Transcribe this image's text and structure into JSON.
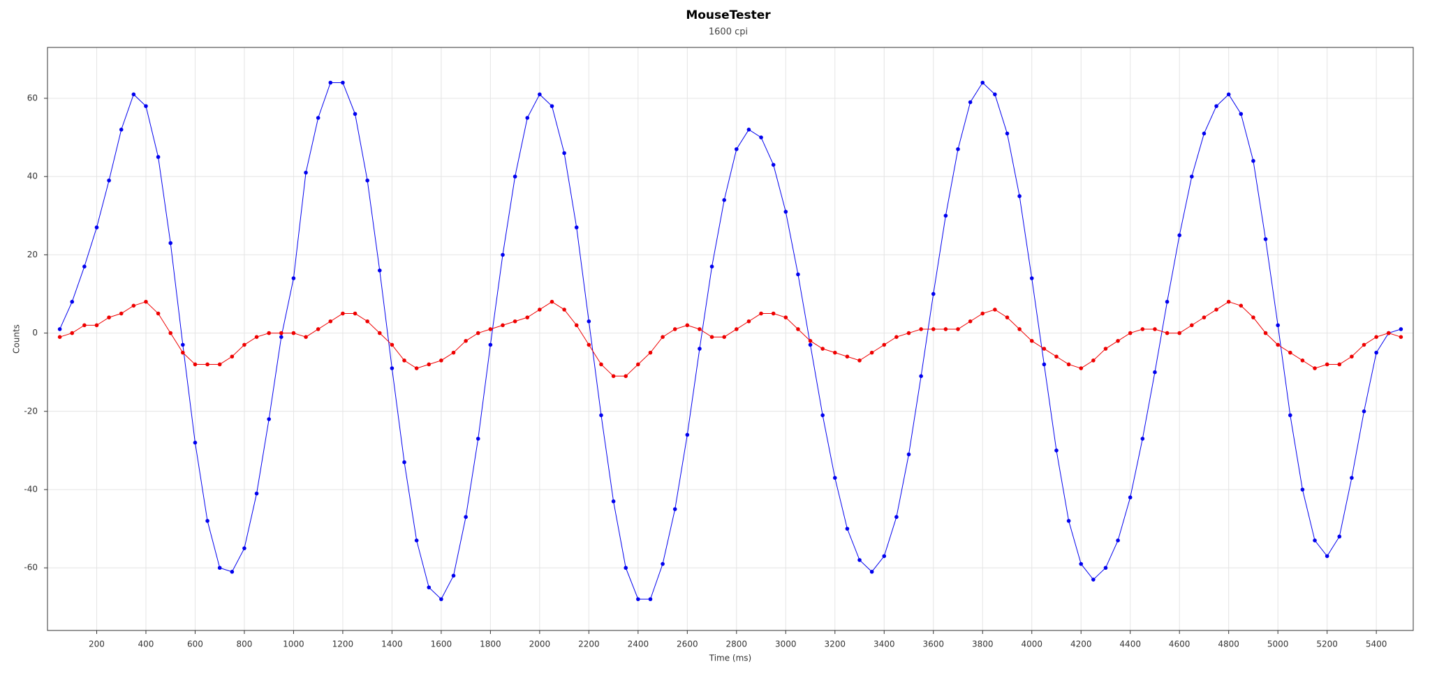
{
  "chart_data": {
    "type": "line",
    "markers": true,
    "title": "MouseTester",
    "subtitle": "1600 cpi",
    "x_label": "Time (ms)",
    "y_label": "Counts",
    "x": [
      50,
      100,
      150,
      200,
      250,
      300,
      350,
      400,
      450,
      500,
      550,
      600,
      650,
      700,
      750,
      800,
      850,
      900,
      950,
      1000,
      1050,
      1100,
      1150,
      1200,
      1250,
      1300,
      1350,
      1400,
      1450,
      1500,
      1550,
      1600,
      1650,
      1700,
      1750,
      1800,
      1850,
      1900,
      1950,
      2000,
      2050,
      2100,
      2150,
      2200,
      2250,
      2300,
      2350,
      2400,
      2450,
      2500,
      2550,
      2600,
      2650,
      2700,
      2750,
      2800,
      2850,
      2900,
      2950,
      3000,
      3050,
      3100,
      3150,
      3200,
      3250,
      3300,
      3350,
      3400,
      3450,
      3500,
      3550,
      3600,
      3650,
      3700,
      3750,
      3800,
      3850,
      3900,
      3950,
      4000,
      4050,
      4100,
      4150,
      4200,
      4250,
      4300,
      4350,
      4400,
      4450,
      4500,
      4550,
      4600,
      4650,
      4700,
      4750,
      4800,
      4850,
      4900,
      4950,
      5000,
      5050,
      5100,
      5150,
      5200,
      5250,
      5300,
      5350,
      5400,
      5450,
      5500
    ],
    "series": [
      {
        "color": "#0000ee",
        "values": [
          1,
          8,
          17,
          27,
          39,
          52,
          61,
          58,
          45,
          23,
          -3,
          -28,
          -48,
          -60,
          -61,
          -55,
          -41,
          -22,
          -1,
          14,
          41,
          55,
          64,
          64,
          56,
          39,
          16,
          -9,
          -33,
          -53,
          -65,
          -68,
          -62,
          -47,
          -27,
          -3,
          20,
          40,
          55,
          61,
          58,
          46,
          27,
          3,
          -21,
          -43,
          -60,
          -68,
          -68,
          -59,
          -45,
          -26,
          -4,
          17,
          34,
          47,
          52,
          50,
          43,
          31,
          15,
          -3,
          -21,
          -37,
          -50,
          -58,
          -61,
          -57,
          -47,
          -31,
          -11,
          10,
          30,
          47,
          59,
          64,
          61,
          51,
          35,
          14,
          -8,
          -30,
          -48,
          -59,
          -63,
          -60,
          -53,
          -42,
          -27,
          -10,
          8,
          25,
          40,
          51,
          58,
          61,
          56,
          44,
          24,
          2,
          -21,
          -40,
          -53,
          -57,
          -52,
          -37,
          -20,
          -5,
          0,
          1
        ]
      },
      {
        "color": "#ee0000",
        "values": [
          -1,
          0,
          2,
          2,
          4,
          5,
          7,
          8,
          5,
          0,
          -5,
          -8,
          -8,
          -8,
          -6,
          -3,
          -1,
          0,
          0,
          0,
          -1,
          1,
          3,
          5,
          5,
          3,
          0,
          -3,
          -7,
          -9,
          -8,
          -7,
          -5,
          -2,
          0,
          1,
          2,
          3,
          4,
          6,
          8,
          6,
          2,
          -3,
          -8,
          -11,
          -11,
          -8,
          -5,
          -1,
          1,
          2,
          1,
          -1,
          -1,
          1,
          3,
          5,
          5,
          4,
          1,
          -2,
          -4,
          -5,
          -6,
          -7,
          -5,
          -3,
          -1,
          0,
          1,
          1,
          1,
          1,
          3,
          5,
          6,
          4,
          1,
          -2,
          -4,
          -6,
          -8,
          -9,
          -7,
          -4,
          -2,
          0,
          1,
          1,
          0,
          0,
          2,
          4,
          6,
          8,
          7,
          4,
          0,
          -3,
          -5,
          -7,
          -9,
          -8,
          -8,
          -6,
          -3,
          -1,
          0,
          -1
        ]
      }
    ],
    "xlim": [
      0,
      5550
    ],
    "xticks": [
      200,
      400,
      600,
      800,
      1000,
      1200,
      1400,
      1600,
      1800,
      2000,
      2200,
      2400,
      2600,
      2800,
      3000,
      3200,
      3400,
      3600,
      3800,
      4000,
      4200,
      4400,
      4600,
      4800,
      5000,
      5200,
      5400
    ],
    "ylim": [
      -76,
      73
    ],
    "yticks": [
      -60,
      -40,
      -20,
      0,
      20,
      40,
      60
    ],
    "grid": true
  }
}
